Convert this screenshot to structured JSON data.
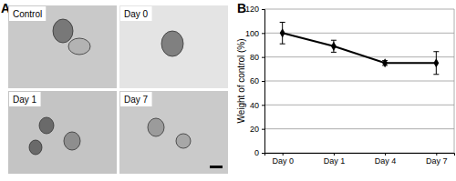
{
  "chart_data": {
    "type": "line",
    "y_label": "Weight of control (%)",
    "categories": [
      "Day 0",
      "Day 1",
      "Day 4",
      "Day 7"
    ],
    "values": [
      100,
      89,
      75,
      75
    ],
    "errors": [
      9,
      5,
      2,
      9.5
    ],
    "color": "#000000",
    "marker": "diamond",
    "ylim": [
      0,
      120
    ],
    "yticks": [
      0,
      20,
      40,
      60,
      80,
      100,
      120
    ],
    "grid": true
  },
  "figure": {
    "panel_a_label": "A",
    "panel_b_label": "B",
    "images": [
      "Control",
      "Day 0",
      "Day 1",
      "Day 7"
    ]
  }
}
